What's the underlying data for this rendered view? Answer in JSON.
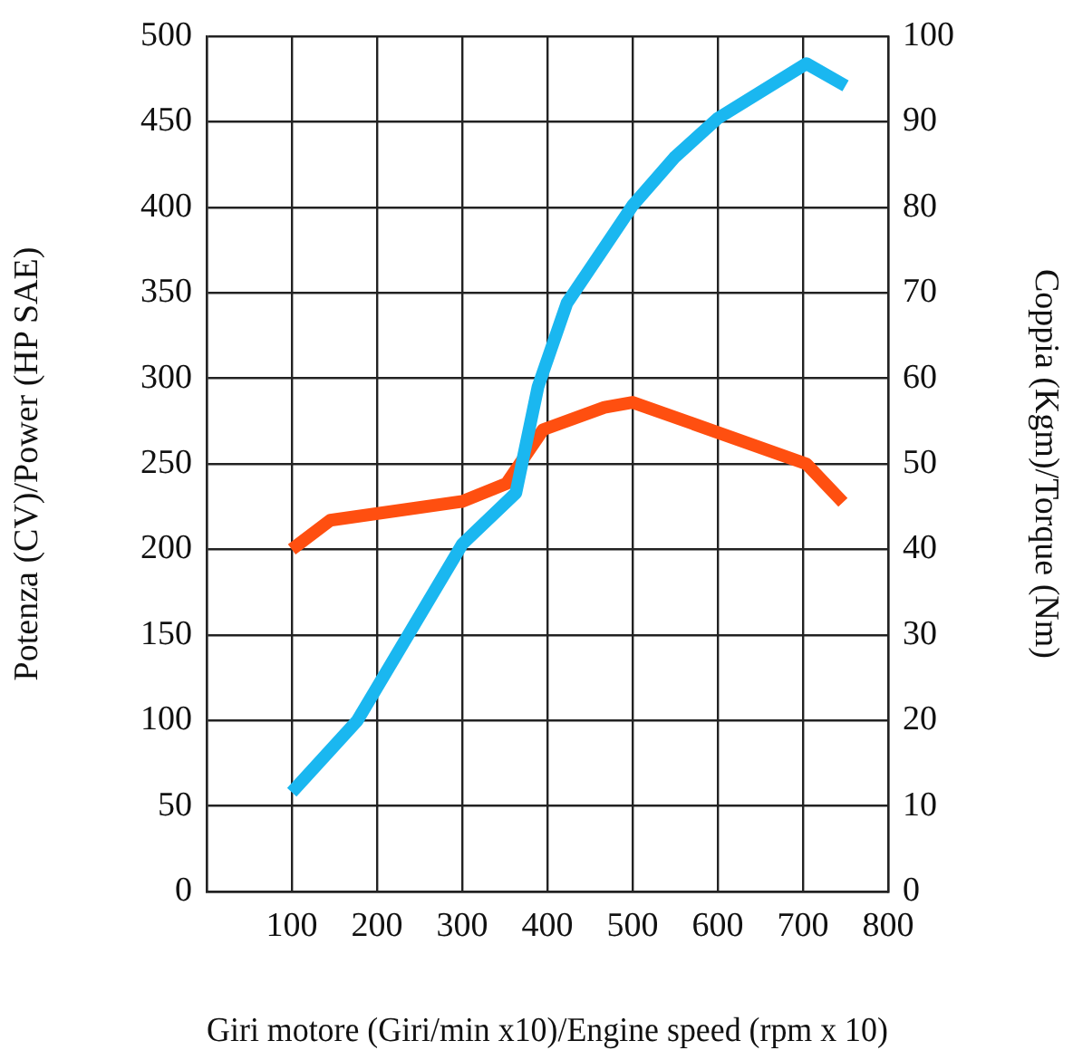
{
  "chart_data": {
    "type": "line",
    "xlabel": "Giri motore (Giri/min x10)/Engine speed (rpm x 10)",
    "ylabel": "Potenza (CV)/Power (HP SAE)",
    "y2label": "Coppia (Kgm)/Torque (Nm)",
    "xlim": [
      0,
      800
    ],
    "xticks": [
      {
        "value": 0,
        "label": null
      },
      100,
      200,
      300,
      400,
      500,
      600,
      700,
      800
    ],
    "ylim": [
      0,
      500
    ],
    "yticks": [
      0,
      50,
      100,
      150,
      200,
      250,
      300,
      350,
      400,
      450,
      500
    ],
    "y2lim": [
      0,
      100
    ],
    "y2ticks": [
      0,
      10,
      20,
      30,
      40,
      50,
      60,
      70,
      80,
      90,
      100
    ],
    "grid": true,
    "legend": false,
    "marker": "none",
    "line_style": "solid",
    "series": [
      {
        "color": "#1ab7f0",
        "x": [
          100,
          177,
          300,
          363,
          389,
          423,
          500,
          549,
          600,
          704,
          750
        ],
        "values": [
          58,
          100,
          203,
          233,
          295,
          344,
          401,
          429,
          452,
          484,
          471
        ]
      },
      {
        "color": "#ff4f10",
        "axis": "y2",
        "x": [
          100,
          145,
          300,
          352,
          395,
          467,
          500,
          704,
          747
        ],
        "values": [
          40,
          43.4,
          45.6,
          47.7,
          54,
          56.6,
          57.2,
          50,
          45.5
        ]
      }
    ]
  }
}
